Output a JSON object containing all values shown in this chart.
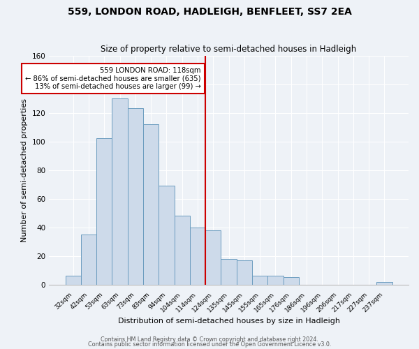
{
  "title": "559, LONDON ROAD, HADLEIGH, BENFLEET, SS7 2EA",
  "subtitle": "Size of property relative to semi-detached houses in Hadleigh",
  "xlabel": "Distribution of semi-detached houses by size in Hadleigh",
  "ylabel": "Number of semi-detached properties",
  "categories": [
    "32sqm",
    "42sqm",
    "53sqm",
    "63sqm",
    "73sqm",
    "83sqm",
    "94sqm",
    "104sqm",
    "114sqm",
    "124sqm",
    "135sqm",
    "145sqm",
    "155sqm",
    "165sqm",
    "176sqm",
    "186sqm",
    "196sqm",
    "206sqm",
    "217sqm",
    "227sqm",
    "237sqm"
  ],
  "values": [
    6,
    35,
    102,
    130,
    123,
    112,
    69,
    48,
    40,
    38,
    18,
    17,
    6,
    6,
    5,
    0,
    0,
    0,
    0,
    0,
    2
  ],
  "bar_color": "#cddaea",
  "bar_edge_color": "#6b9cbf",
  "reference_line_color": "#cc0000",
  "annotation_text": "559 LONDON ROAD: 118sqm\n← 86% of semi-detached houses are smaller (635)\n13% of semi-detached houses are larger (99) →",
  "annotation_box_color": "#ffffff",
  "annotation_box_edge_color": "#cc0000",
  "ylim": [
    0,
    160
  ],
  "footnote1": "Contains HM Land Registry data © Crown copyright and database right 2024.",
  "footnote2": "Contains public sector information licensed under the Open Government Licence v3.0.",
  "background_color": "#eef2f7",
  "grid_color": "#ffffff",
  "title_fontsize": 10,
  "subtitle_fontsize": 8.5,
  "xlabel_fontsize": 8,
  "ylabel_fontsize": 8,
  "bar_width": 1.0,
  "ref_line_x": 8.5
}
